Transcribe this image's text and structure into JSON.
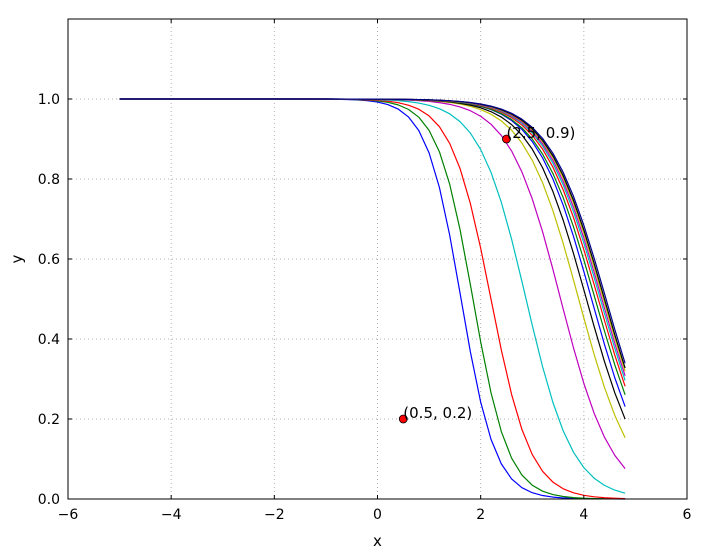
{
  "chart_data": {
    "type": "line",
    "xlabel": "x",
    "ylabel": "y",
    "xlim": [
      -6,
      6
    ],
    "ylim": [
      0,
      1.2
    ],
    "xticks": [
      -6,
      -4,
      -2,
      0,
      2,
      4,
      6
    ],
    "xtick_labels": [
      "−6",
      "−4",
      "−2",
      "0",
      "2",
      "4",
      "6"
    ],
    "yticks": [
      0.0,
      0.2,
      0.4,
      0.6,
      0.8,
      1.0
    ],
    "ytick_labels": [
      "0.0",
      "0.2",
      "0.4",
      "0.6",
      "0.8",
      "1.0"
    ],
    "grid": true,
    "x_range": [
      -5,
      4.8
    ],
    "curve_model": "y = 1 / (1 + exp(k * (x - c)))",
    "series": [
      {
        "color": "#0000ff",
        "k": 3.0,
        "c": 1.62
      },
      {
        "color": "#008000",
        "k": 2.9,
        "c": 1.85
      },
      {
        "color": "#ff0000",
        "k": 2.6,
        "c": 2.2
      },
      {
        "color": "#00bfbf",
        "k": 2.2,
        "c": 2.88
      },
      {
        "color": "#bf00bf",
        "k": 2.0,
        "c": 3.55
      },
      {
        "color": "#bfbf00",
        "k": 1.9,
        "c": 3.9
      },
      {
        "color": "#000000",
        "k": 1.85,
        "c": 4.05
      },
      {
        "color": "#0000ff",
        "k": 1.85,
        "c": 4.15
      },
      {
        "color": "#008000",
        "k": 1.8,
        "c": 4.22
      },
      {
        "color": "#ff0000",
        "k": 1.8,
        "c": 4.28
      },
      {
        "color": "#00bfbf",
        "k": 1.8,
        "c": 4.32
      },
      {
        "color": "#bf00bf",
        "k": 1.8,
        "c": 4.35
      },
      {
        "color": "#bfbf00",
        "k": 1.8,
        "c": 4.38
      },
      {
        "color": "#000000",
        "k": 1.8,
        "c": 4.4
      },
      {
        "color": "#00008b",
        "k": 1.8,
        "c": 4.43
      }
    ],
    "annotations": [
      {
        "x": 2.5,
        "y": 0.9,
        "label": "(2.5, 0.9)",
        "color": "#ff0000"
      },
      {
        "x": 0.5,
        "y": 0.2,
        "label": "(0.5, 0.2)",
        "color": "#ff0000"
      }
    ]
  }
}
